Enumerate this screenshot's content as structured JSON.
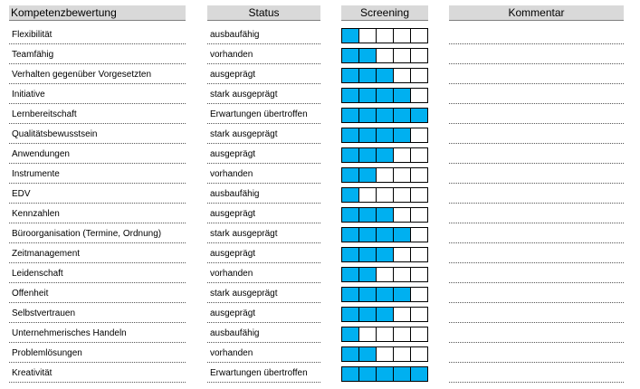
{
  "headers": {
    "competency": "Kompetenzbewertung",
    "status": "Status",
    "screening": "Screening",
    "comment": "Kommentar"
  },
  "colors": {
    "fill": "#00b0f0",
    "header_bg": "#d9d9d9"
  },
  "screening_max": 5,
  "rows": [
    {
      "competency": "Flexibilität",
      "status": "ausbaufähig",
      "level": 1,
      "comment": ""
    },
    {
      "competency": "Teamfähig",
      "status": "vorhanden",
      "level": 2,
      "comment": ""
    },
    {
      "competency": "Verhalten gegenüber Vorgesetzten",
      "status": "ausgeprägt",
      "level": 3,
      "comment": ""
    },
    {
      "competency": "Initiative",
      "status": "stark ausgeprägt",
      "level": 4,
      "comment": ""
    },
    {
      "competency": "Lernbereitschaft",
      "status": "Erwartungen übertroffen",
      "level": 5,
      "comment": ""
    },
    {
      "competency": "Qualitätsbewusstsein",
      "status": "stark ausgeprägt",
      "level": 4,
      "comment": ""
    },
    {
      "competency": "Anwendungen",
      "status": "ausgeprägt",
      "level": 3,
      "comment": ""
    },
    {
      "competency": "Instrumente",
      "status": "vorhanden",
      "level": 2,
      "comment": ""
    },
    {
      "competency": "EDV",
      "status": "ausbaufähig",
      "level": 1,
      "comment": ""
    },
    {
      "competency": "Kennzahlen",
      "status": "ausgeprägt",
      "level": 3,
      "comment": ""
    },
    {
      "competency": "Büroorganisation (Termine, Ordnung)",
      "status": "stark ausgeprägt",
      "level": 4,
      "comment": ""
    },
    {
      "competency": "Zeitmanagement",
      "status": "ausgeprägt",
      "level": 3,
      "comment": ""
    },
    {
      "competency": "Leidenschaft",
      "status": "vorhanden",
      "level": 2,
      "comment": ""
    },
    {
      "competency": "Offenheit",
      "status": "stark ausgeprägt",
      "level": 4,
      "comment": ""
    },
    {
      "competency": "Selbstvertrauen",
      "status": "ausgeprägt",
      "level": 3,
      "comment": ""
    },
    {
      "competency": "Unternehmerisches Handeln",
      "status": "ausbaufähig",
      "level": 1,
      "comment": ""
    },
    {
      "competency": "Problemlösungen",
      "status": "vorhanden",
      "level": 2,
      "comment": ""
    },
    {
      "competency": "Kreativität",
      "status": "Erwartungen übertroffen",
      "level": 5,
      "comment": ""
    }
  ]
}
